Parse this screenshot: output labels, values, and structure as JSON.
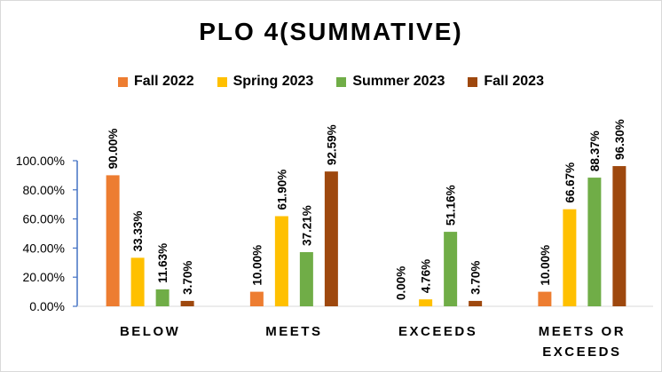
{
  "chart_data": {
    "type": "bar",
    "title": "PLO 4(SUMMATIVE)",
    "categories": [
      [
        "BELOW"
      ],
      [
        "MEETS"
      ],
      [
        "EXCEEDS"
      ],
      [
        "MEETS OR",
        "EXCEEDS"
      ]
    ],
    "series": [
      {
        "name": "Fall 2022",
        "color": "#ED7D31",
        "values": [
          90.0,
          10.0,
          0.0,
          10.0
        ],
        "labels": [
          "90.00%",
          "10.00%",
          "0.00%",
          "10.00%"
        ]
      },
      {
        "name": "Spring 2023",
        "color": "#FFC000",
        "values": [
          33.33,
          61.9,
          4.76,
          66.67
        ],
        "labels": [
          "33.33%",
          "61.90%",
          "4.76%",
          "66.67%"
        ]
      },
      {
        "name": "Summer 2023",
        "color": "#70AD47",
        "values": [
          11.63,
          37.21,
          51.16,
          88.37
        ],
        "labels": [
          "11.63%",
          "37.21%",
          "51.16%",
          "88.37%"
        ]
      },
      {
        "name": "Fall 2023",
        "color": "#9E480E",
        "values": [
          3.7,
          92.59,
          3.7,
          96.3
        ],
        "labels": [
          "3.70%",
          "92.59%",
          "3.70%",
          "96.30%"
        ]
      }
    ],
    "ylim": [
      0,
      100
    ],
    "yticks": [
      0,
      20,
      40,
      60,
      80,
      100
    ],
    "ytick_labels": [
      "0.00%",
      "20.00%",
      "40.00%",
      "60.00%",
      "80.00%",
      "100.00%"
    ],
    "legend_position": "top",
    "grid": false
  }
}
